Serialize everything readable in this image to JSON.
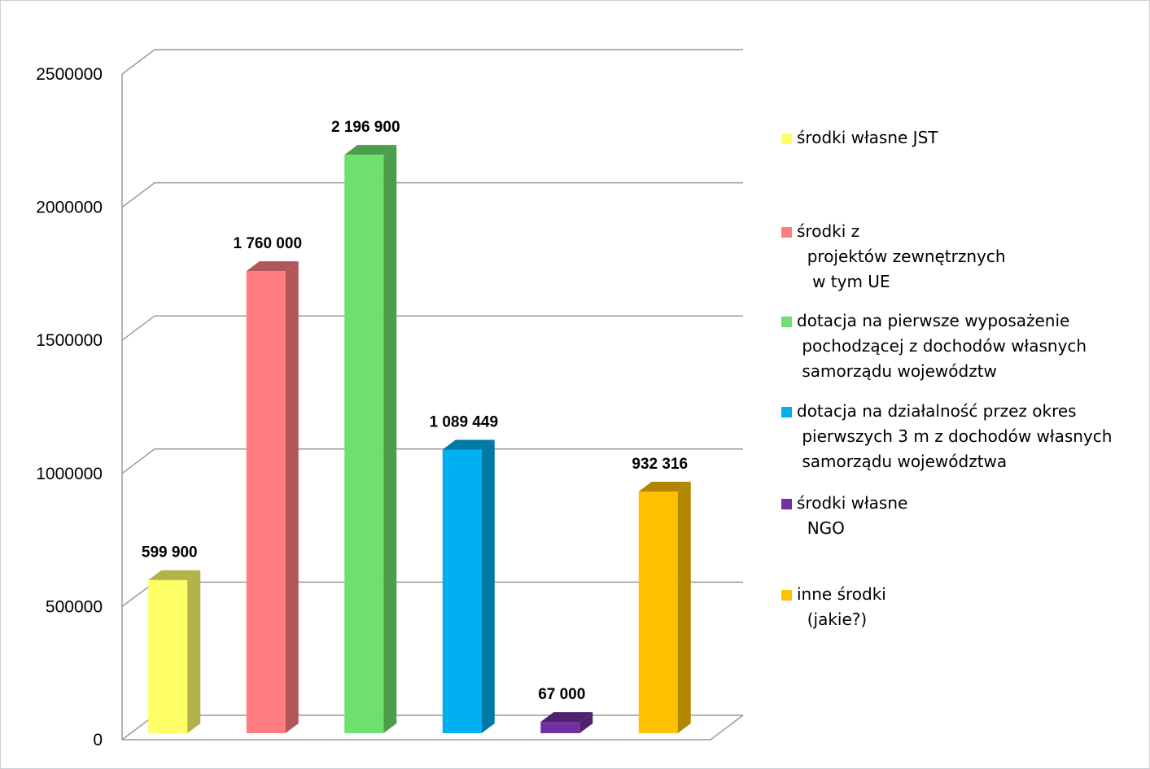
{
  "chart_data": {
    "type": "bar",
    "title": "",
    "xlabel": "",
    "ylabel": "",
    "ylim": [
      0,
      2500000
    ],
    "yticks": [
      0,
      500000,
      1000000,
      1500000,
      2000000,
      2500000
    ],
    "ytick_labels": [
      "0",
      "500000",
      "1000000",
      "1500000",
      "2000000",
      "2500000"
    ],
    "grid": true,
    "three_d": true,
    "legend_position": "right",
    "categories": [
      "środki własne JST",
      "środki z\n  projektów zewnętrznych\n   w tym UE",
      "dotacja na pierwsze wyposażenie\n pochodzącej z dochodów własnych\n samorządu województw",
      "dotacja na działalność przez okres\n pierwszych 3 m z dochodów własnych\n samorządu województwa",
      "środki własne\n  NGO",
      "inne środki\n  (jakie?)"
    ],
    "values": [
      599900,
      1760000,
      2196900,
      1089449,
      67000,
      932316
    ],
    "data_labels": [
      "599 900",
      "1 760 000",
      "2 196 900",
      "1 089 449",
      "67 000",
      "932 316"
    ],
    "colors": [
      "#ffff66",
      "#ff7c80",
      "#6ee06e",
      "#00b0f0",
      "#7030a0",
      "#ffc000"
    ],
    "side_colors": [
      "#b2b24a",
      "#b25759",
      "#4c9e4c",
      "#0079a6",
      "#4e2270",
      "#b28600"
    ]
  }
}
